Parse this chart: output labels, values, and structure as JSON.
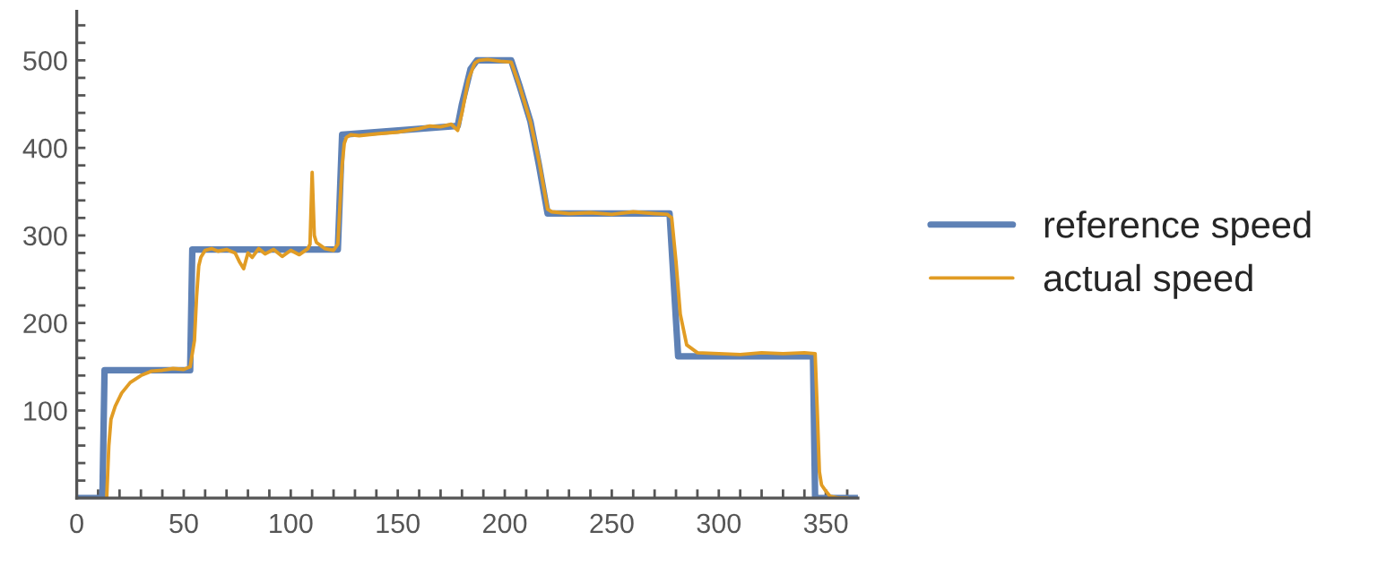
{
  "chart_data": {
    "type": "line",
    "xlim": [
      0,
      365
    ],
    "ylim": [
      0,
      556
    ],
    "xticks": [
      {
        "value": 0,
        "label": "0"
      },
      {
        "value": 10,
        "label": null
      },
      {
        "value": 20,
        "label": null
      },
      {
        "value": 30,
        "label": null
      },
      {
        "value": 40,
        "label": null
      },
      50,
      {
        "value": 60,
        "label": null
      },
      {
        "value": 70,
        "label": null
      },
      {
        "value": 80,
        "label": null
      },
      {
        "value": 90,
        "label": null
      },
      100,
      {
        "value": 110,
        "label": null
      },
      {
        "value": 120,
        "label": null
      },
      {
        "value": 130,
        "label": null
      },
      {
        "value": 140,
        "label": null
      },
      150,
      {
        "value": 160,
        "label": null
      },
      {
        "value": 170,
        "label": null
      },
      {
        "value": 180,
        "label": null
      },
      {
        "value": 190,
        "label": null
      },
      200,
      {
        "value": 210,
        "label": null
      },
      {
        "value": 220,
        "label": null
      },
      {
        "value": 230,
        "label": null
      },
      {
        "value": 240,
        "label": null
      },
      250,
      {
        "value": 260,
        "label": null
      },
      {
        "value": 270,
        "label": null
      },
      {
        "value": 280,
        "label": null
      },
      {
        "value": 290,
        "label": null
      },
      300,
      {
        "value": 310,
        "label": null
      },
      {
        "value": 320,
        "label": null
      },
      {
        "value": 330,
        "label": null
      },
      {
        "value": 340,
        "label": null
      },
      350,
      {
        "value": 360,
        "label": null
      }
    ],
    "yticks": [
      {
        "value": 20,
        "label": null
      },
      {
        "value": 40,
        "label": null
      },
      {
        "value": 60,
        "label": null
      },
      {
        "value": 80,
        "label": null
      },
      100,
      {
        "value": 120,
        "label": null
      },
      {
        "value": 140,
        "label": null
      },
      {
        "value": 160,
        "label": null
      },
      {
        "value": 180,
        "label": null
      },
      200,
      {
        "value": 220,
        "label": null
      },
      {
        "value": 240,
        "label": null
      },
      {
        "value": 260,
        "label": null
      },
      {
        "value": 280,
        "label": null
      },
      300,
      {
        "value": 320,
        "label": null
      },
      {
        "value": 340,
        "label": null
      },
      {
        "value": 360,
        "label": null
      },
      {
        "value": 380,
        "label": null
      },
      400,
      {
        "value": 420,
        "label": null
      },
      {
        "value": 440,
        "label": null
      },
      {
        "value": 460,
        "label": null
      },
      {
        "value": 480,
        "label": null
      },
      500,
      {
        "value": 520,
        "label": null
      },
      {
        "value": 540,
        "label": null
      }
    ],
    "grid": false,
    "legend": "right",
    "marker": "none",
    "line_style": "solid",
    "series": [
      {
        "name": "reference speed",
        "color": "#5e81b5",
        "x": [
          0,
          12,
          13,
          53,
          54,
          122,
          124,
          178,
          180,
          184,
          187,
          203,
          207,
          212,
          216,
          220,
          277,
          281,
          344,
          345,
          365
        ],
        "values": [
          0,
          0,
          146,
          146,
          284,
          284,
          415,
          425,
          450,
          490,
          500,
          500,
          470,
          430,
          380,
          325,
          325,
          162,
          162,
          0,
          0
        ]
      },
      {
        "name": "actual speed",
        "color": "#e19c24",
        "x": [
          14,
          15,
          16,
          18,
          21,
          25,
          30,
          35,
          40,
          45,
          50,
          53,
          55,
          56,
          57,
          58,
          60,
          63,
          66,
          70,
          74,
          76,
          78,
          80,
          82,
          85,
          88,
          92,
          96,
          100,
          104,
          108,
          109,
          110,
          111,
          112,
          116,
          120,
          122,
          124,
          125,
          126,
          128,
          132,
          140,
          150,
          160,
          165,
          170,
          175,
          178,
          180,
          183,
          186,
          188,
          192,
          198,
          203,
          207,
          212,
          216,
          220,
          222,
          230,
          240,
          250,
          260,
          270,
          276,
          278,
          280,
          282,
          285,
          290,
          300,
          310,
          320,
          330,
          340,
          345,
          346,
          347,
          348,
          350,
          352,
          356,
          360
        ],
        "values": [
          0,
          60,
          90,
          105,
          120,
          132,
          140,
          145,
          146,
          148,
          147,
          150,
          180,
          230,
          265,
          275,
          283,
          285,
          282,
          284,
          280,
          270,
          262,
          280,
          275,
          285,
          279,
          284,
          276,
          283,
          278,
          285,
          290,
          372,
          300,
          292,
          285,
          283,
          290,
          380,
          405,
          412,
          415,
          414,
          416,
          418,
          422,
          425,
          424,
          427,
          420,
          440,
          478,
          497,
          500,
          501,
          499,
          498,
          470,
          430,
          385,
          330,
          327,
          325,
          326,
          324,
          327,
          325,
          324,
          320,
          270,
          210,
          175,
          166,
          165,
          164,
          166,
          165,
          166,
          165,
          100,
          30,
          15,
          8,
          2,
          0,
          0
        ]
      }
    ]
  }
}
